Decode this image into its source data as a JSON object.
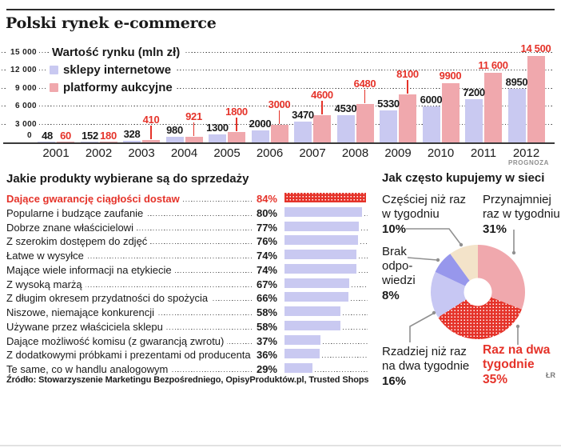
{
  "title": "Polski rynek e-commerce",
  "signature": "ŁR",
  "colors": {
    "accent_red": "#e5332a",
    "shop_lavender": "#c9c9f1",
    "auction_pink": "#f0a8ad",
    "donut_lavender": "#c7c7f3",
    "donut_periwinkle": "#9797ec",
    "donut_cream": "#f3e3c9",
    "leader_gray": "#909090"
  },
  "chart_data": [
    {
      "type": "bar",
      "title": "Wartość rynku (mln zł)",
      "categories": [
        "2001",
        "2002",
        "2003",
        "2004",
        "2005",
        "2006",
        "2007",
        "2008",
        "2009",
        "2010",
        "2011",
        "2012"
      ],
      "series": [
        {
          "name": "sklepy internetowe",
          "color": "#c9c9f1",
          "values": [
            48,
            152,
            328,
            980,
            1300,
            2000,
            3470,
            4530,
            5330,
            6000,
            7200,
            8950
          ],
          "value_labels": [
            "48",
            "152",
            "328",
            "980",
            "1300",
            "2000",
            "3470",
            "4530",
            "5330",
            "6000",
            "7200",
            "8950"
          ]
        },
        {
          "name": "platformy aukcyjne",
          "color": "#f0a8ad",
          "values": [
            60,
            180,
            410,
            921,
            1800,
            3000,
            4600,
            6480,
            8100,
            9900,
            11600,
            14500
          ],
          "value_labels": [
            "60",
            "180",
            "410",
            "921",
            "1800",
            "3000",
            "4600",
            "6480",
            "8100",
            "9900",
            "11 600",
            "14 500"
          ]
        }
      ],
      "ylim": [
        0,
        15000
      ],
      "yticks": [
        0,
        3000,
        6000,
        9000,
        12000,
        15000
      ],
      "ytick_labels": [
        "0",
        "3 000",
        "6 000",
        "9 000",
        "12 000",
        "15 000"
      ],
      "grid": "dotted-horizontal",
      "legend_position": "top-left",
      "note": "PROGNOZA",
      "note_category": "2012"
    },
    {
      "type": "bar",
      "orientation": "horizontal",
      "title": "Jakie produkty wybierane są do sprzedaży",
      "categories": [
        "Dające gwarancję ciągłości dostaw",
        "Popularne i budzące zaufanie",
        "Dobrze znane właścicielowi",
        "Z szerokim dostępem do zdjęć",
        "Łatwe w wysyłce",
        "Mające wiele informacji na etykiecie",
        "Z wysoką marżą",
        "Z długim okresem przydatności do spożycia",
        "Niszowe, niemające konkurencji",
        "Używane przez właściciela sklepu",
        "Dające możliwość komisu (z gwarancją zwrotu)",
        "Z dodatkowymi próbkami i prezentami od producenta",
        "Te same, co w handlu analogowym"
      ],
      "values": [
        84,
        80,
        77,
        76,
        74,
        74,
        67,
        66,
        58,
        58,
        37,
        36,
        29
      ],
      "unit": "%",
      "highlight_index": 0,
      "xlim": [
        0,
        100
      ],
      "source": "Źródło: Stowarzyszenie Marketingu Bezpośredniego, OpisyProduktów.pl, Trusted Shops"
    },
    {
      "type": "pie",
      "subtype": "donut",
      "title": "Jak często kupujemy w sieci",
      "segments": [
        {
          "label": "Przynajmniej raz w tygodniu",
          "value": 31,
          "color": "#f0a8ad"
        },
        {
          "label": "Raz na dwa tygodnie",
          "value": 35,
          "color": "hatch"
        },
        {
          "label": "Rzadziej niż raz na dwa tygodnie",
          "value": 16,
          "color": "#c7c7f3"
        },
        {
          "label": "Brak odpowiedzi",
          "value": 8,
          "color": "#9797ec"
        },
        {
          "label": "Częściej niż raz w tygodniu",
          "value": 10,
          "color": "#f3e3c9"
        }
      ],
      "start_angle_deg": 0,
      "direction": "clockwise",
      "callouts": [
        {
          "lines": [
            "Częściej niż raz",
            "w tygodniu"
          ],
          "pct": "10%"
        },
        {
          "lines": [
            "Przynajmniej",
            "raz w tygodniu"
          ],
          "pct": "31%"
        },
        {
          "lines": [
            "Brak",
            "odpo-",
            "wiedzi"
          ],
          "pct": "8%"
        },
        {
          "lines": [
            "Rzadziej niż raz",
            "na dwa tygodnie"
          ],
          "pct": "16%"
        },
        {
          "lines": [
            "Raz na dwa",
            "tygodnie"
          ],
          "pct": "35%",
          "highlight": true
        }
      ]
    }
  ]
}
